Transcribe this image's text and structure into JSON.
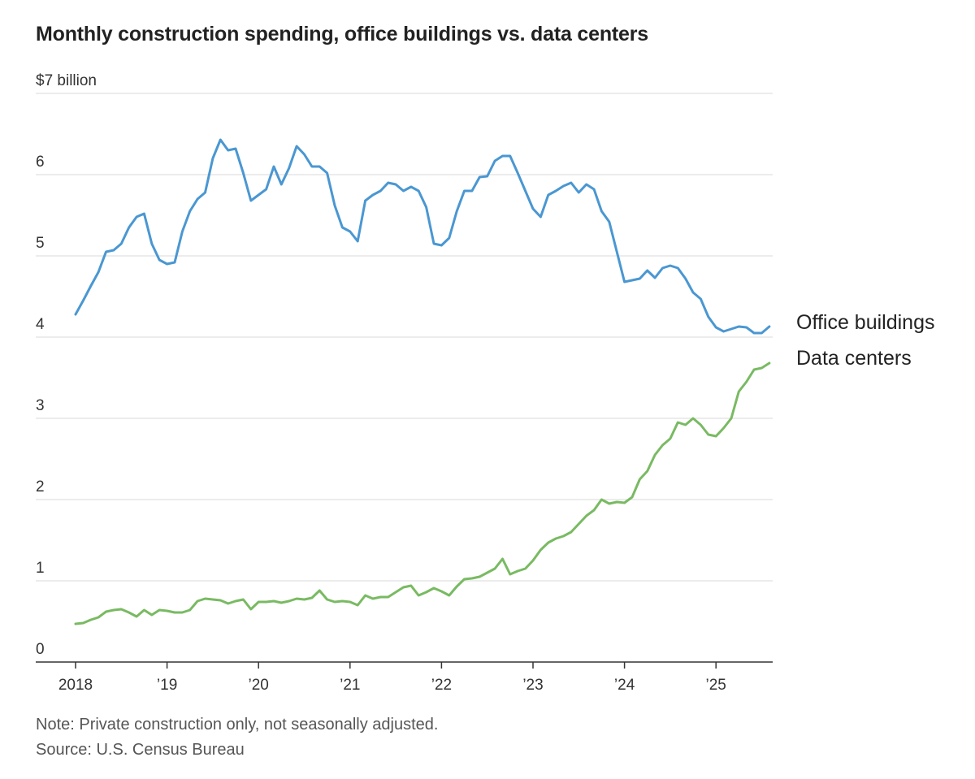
{
  "chart_data": {
    "type": "line",
    "title": "Monthly construction spending, office buildings vs. data centers",
    "ylabel_top": "$7 billion",
    "ylim": [
      0,
      7
    ],
    "y_ticks": [
      {
        "value": 0,
        "label": "0"
      },
      {
        "value": 1,
        "label": "1"
      },
      {
        "value": 2,
        "label": "2"
      },
      {
        "value": 3,
        "label": "3"
      },
      {
        "value": 4,
        "label": "4"
      },
      {
        "value": 5,
        "label": "5"
      },
      {
        "value": 6,
        "label": "6"
      },
      {
        "value": 7,
        "label": "$7 billion"
      }
    ],
    "xlim": [
      2018.0,
      2025.7
    ],
    "x_ticks": [
      {
        "value": 2018,
        "label": "2018"
      },
      {
        "value": 2019,
        "label": "’19"
      },
      {
        "value": 2020,
        "label": "’20"
      },
      {
        "value": 2021,
        "label": "’21"
      },
      {
        "value": 2022,
        "label": "’22"
      },
      {
        "value": 2023,
        "label": "’23"
      },
      {
        "value": 2024,
        "label": "’24"
      },
      {
        "value": 2025,
        "label": "’25"
      }
    ],
    "x_start": 2018.0,
    "x_step": 0.0833333,
    "series": [
      {
        "name": "Office buildings",
        "color": "#4a97d2",
        "values": [
          4.28,
          4.45,
          4.63,
          4.8,
          5.05,
          5.07,
          5.15,
          5.35,
          5.48,
          5.52,
          5.15,
          4.95,
          4.9,
          4.92,
          5.3,
          5.55,
          5.7,
          5.78,
          6.2,
          6.43,
          6.3,
          6.32,
          6.02,
          5.68,
          5.75,
          5.82,
          6.1,
          5.88,
          6.08,
          6.35,
          6.25,
          6.1,
          6.1,
          6.02,
          5.62,
          5.35,
          5.3,
          5.18,
          5.68,
          5.75,
          5.8,
          5.9,
          5.88,
          5.8,
          5.85,
          5.8,
          5.6,
          5.15,
          5.13,
          5.22,
          5.55,
          5.8,
          5.8,
          5.97,
          5.98,
          6.17,
          6.23,
          6.23,
          6.02,
          5.8,
          5.58,
          5.48,
          5.75,
          5.8,
          5.86,
          5.9,
          5.78,
          5.88,
          5.82,
          5.55,
          5.42,
          5.05,
          4.68,
          4.7,
          4.72,
          4.82,
          4.73,
          4.85,
          4.88,
          4.85,
          4.72,
          4.55,
          4.47,
          4.25,
          4.12,
          4.07,
          4.1,
          4.13,
          4.12,
          4.05,
          4.05,
          4.13
        ]
      },
      {
        "name": "Data centers",
        "color": "#79ba62",
        "values": [
          0.47,
          0.48,
          0.52,
          0.55,
          0.62,
          0.64,
          0.65,
          0.61,
          0.56,
          0.64,
          0.58,
          0.64,
          0.63,
          0.61,
          0.61,
          0.64,
          0.75,
          0.78,
          0.77,
          0.76,
          0.72,
          0.75,
          0.77,
          0.65,
          0.74,
          0.74,
          0.75,
          0.73,
          0.75,
          0.78,
          0.77,
          0.79,
          0.88,
          0.77,
          0.74,
          0.75,
          0.74,
          0.7,
          0.82,
          0.78,
          0.8,
          0.8,
          0.86,
          0.92,
          0.94,
          0.82,
          0.86,
          0.91,
          0.87,
          0.82,
          0.93,
          1.02,
          1.03,
          1.05,
          1.1,
          1.15,
          1.27,
          1.08,
          1.12,
          1.15,
          1.25,
          1.38,
          1.47,
          1.52,
          1.55,
          1.6,
          1.7,
          1.8,
          1.87,
          2.0,
          1.95,
          1.97,
          1.96,
          2.03,
          2.25,
          2.35,
          2.55,
          2.67,
          2.75,
          2.95,
          2.92,
          3.0,
          2.92,
          2.8,
          2.78,
          2.88,
          3.0,
          3.33,
          3.45,
          3.6,
          3.62,
          3.68
        ]
      }
    ],
    "note": "Note: Private construction only, not seasonally adjusted.",
    "source": "Source: U.S. Census Bureau"
  }
}
